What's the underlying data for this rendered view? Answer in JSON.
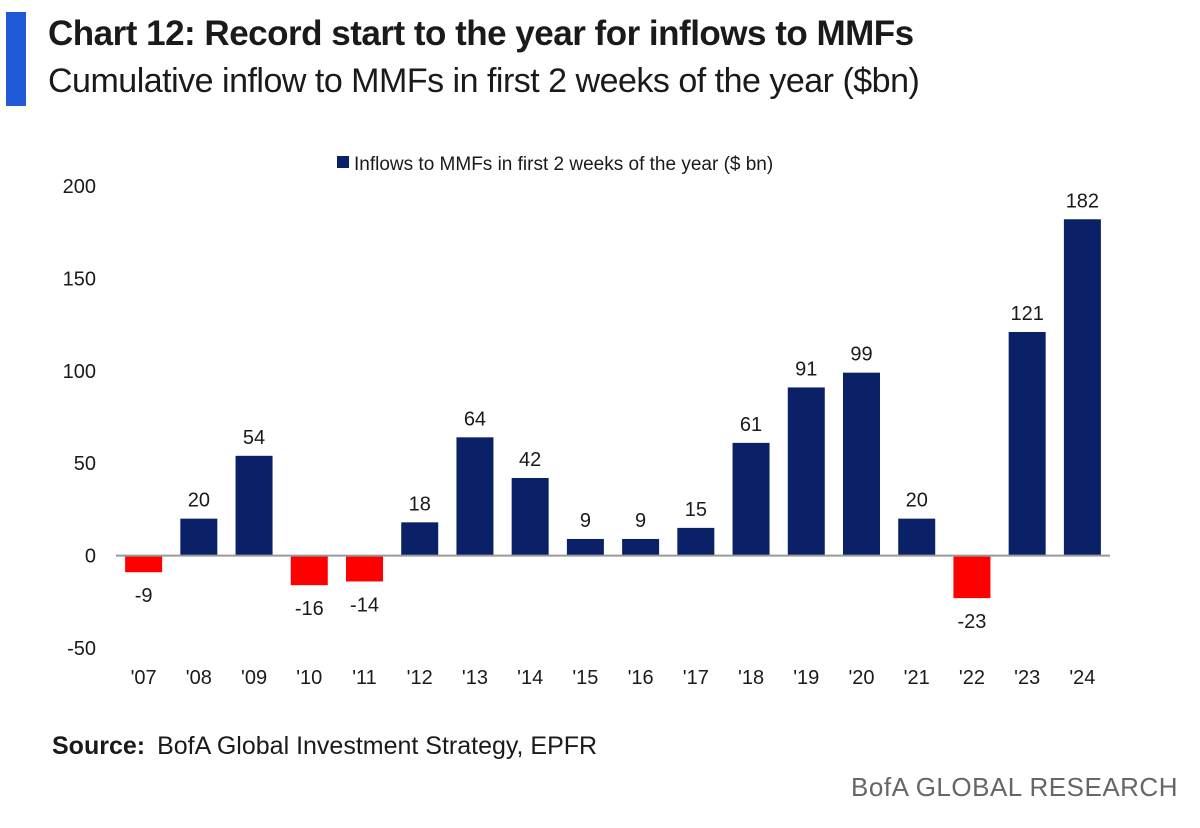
{
  "header": {
    "title": "Chart 12: Record start to the year for inflows to MMFs",
    "subtitle": "Cumulative inflow to MMFs in first 2 weeks of the year ($bn)"
  },
  "footer": {
    "source_label": "Source:",
    "source_text": "BofA Global Investment Strategy, EPFR",
    "brand": "BofA GLOBAL RESEARCH"
  },
  "colors": {
    "positive": "#0a2168",
    "negative": "#ff0000",
    "accent": "#1f5bd6",
    "baseline": "#999999",
    "text": "#1a1a1a"
  },
  "chart_data": {
    "type": "bar",
    "categories": [
      "'07",
      "'08",
      "'09",
      "'10",
      "'11",
      "'12",
      "'13",
      "'14",
      "'15",
      "'16",
      "'17",
      "'18",
      "'19",
      "'20",
      "'21",
      "'22",
      "'23",
      "'24"
    ],
    "series": [
      {
        "name": "Inflows to MMFs in first 2 weeks of the year ($ bn)",
        "values": [
          -9,
          20,
          54,
          -16,
          -14,
          18,
          64,
          42,
          9,
          9,
          15,
          61,
          91,
          99,
          20,
          -23,
          121,
          182
        ],
        "data_labels": [
          "-9",
          "20",
          "54",
          "-16",
          "-14",
          "18",
          "64",
          "42",
          "9",
          "9",
          "15",
          "61",
          "91",
          "99",
          "20",
          "-23",
          "121",
          "182"
        ]
      }
    ],
    "ylim": [
      -50,
      200
    ],
    "yticks": [
      -50,
      0,
      50,
      100,
      150,
      200
    ],
    "ytick_labels": [
      "-50",
      "0",
      "50",
      "100",
      "150",
      "200"
    ],
    "grid": false,
    "legend_position": "top-center",
    "xlabel": "",
    "ylabel": ""
  }
}
